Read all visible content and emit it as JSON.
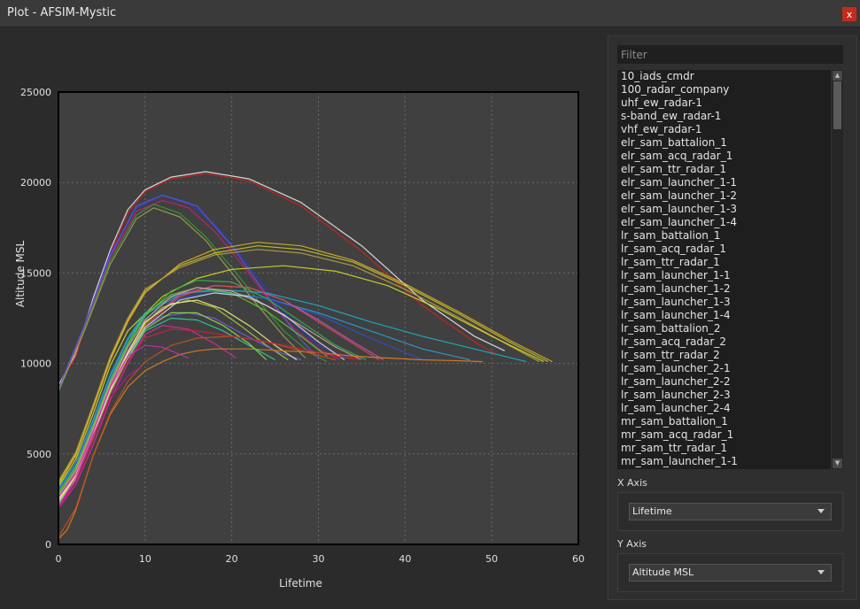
{
  "window": {
    "title": "Plot - AFSIM-Mystic",
    "close_label": "x"
  },
  "panel": {
    "filter_placeholder": "Filter",
    "platforms": [
      "10_iads_cmdr",
      "100_radar_company",
      "uhf_ew_radar-1",
      "s-band_ew_radar-1",
      "vhf_ew_radar-1",
      "elr_sam_battalion_1",
      "elr_sam_acq_radar_1",
      "elr_sam_ttr_radar_1",
      "elr_sam_launcher_1-1",
      "elr_sam_launcher_1-2",
      "elr_sam_launcher_1-3",
      "elr_sam_launcher_1-4",
      "lr_sam_battalion_1",
      "lr_sam_acq_radar_1",
      "lr_sam_ttr_radar_1",
      "lr_sam_launcher_1-1",
      "lr_sam_launcher_1-2",
      "lr_sam_launcher_1-3",
      "lr_sam_launcher_1-4",
      "lr_sam_battalion_2",
      "lr_sam_acq_radar_2",
      "lr_sam_ttr_radar_2",
      "lr_sam_launcher_2-1",
      "lr_sam_launcher_2-2",
      "lr_sam_launcher_2-3",
      "lr_sam_launcher_2-4",
      "mr_sam_battalion_1",
      "mr_sam_acq_radar_1",
      "mr_sam_ttr_radar_1",
      "mr_sam_launcher_1-1"
    ],
    "x_axis": {
      "label": "X Axis",
      "selected": "Lifetime"
    },
    "y_axis": {
      "label": "Y Axis",
      "selected": "Altitude MSL"
    }
  },
  "chart_data": {
    "type": "line",
    "xlabel": "Lifetime",
    "ylabel": "Altitude MSL",
    "xlim": [
      0,
      60
    ],
    "ylim": [
      0,
      25000
    ],
    "xticks": [
      0,
      10,
      20,
      30,
      40,
      50,
      60
    ],
    "yticks": [
      0,
      5000,
      10000,
      15000,
      20000,
      25000
    ],
    "grid": true,
    "series": [
      {
        "color": "#e8e8e8",
        "x": [
          0,
          2,
          4,
          6,
          8,
          10,
          13,
          17,
          22,
          28,
          35,
          42,
          48,
          51.5
        ],
        "y": [
          8800,
          10500,
          13600,
          16300,
          18500,
          19600,
          20300,
          20600,
          20200,
          18900,
          16500,
          13500,
          11500,
          10700
        ]
      },
      {
        "color": "#d02020",
        "x": [
          0,
          2,
          4,
          6,
          8,
          10,
          13,
          17,
          22,
          28,
          35,
          42,
          48,
          50.5
        ],
        "y": [
          8700,
          10400,
          13400,
          16100,
          18300,
          19500,
          20200,
          20500,
          20100,
          18700,
          16200,
          13200,
          11200,
          10500
        ]
      },
      {
        "color": "#2b3bd6",
        "x": [
          0,
          3,
          6,
          9,
          12,
          15,
          18,
          21,
          24,
          27,
          30,
          33.5
        ],
        "y": [
          8500,
          12100,
          16100,
          18600,
          19300,
          18900,
          17700,
          16000,
          14100,
          12300,
          11000,
          10300
        ]
      },
      {
        "color": "#c81d7a",
        "x": [
          0,
          3,
          6,
          9,
          12,
          15,
          18,
          21,
          24,
          27,
          30,
          32.5
        ],
        "y": [
          8600,
          12000,
          15900,
          18400,
          19000,
          18600,
          17300,
          15600,
          13700,
          12000,
          10800,
          10200
        ]
      },
      {
        "color": "#3a9a30",
        "x": [
          0,
          3,
          6,
          9,
          11,
          14,
          17,
          20,
          23,
          26,
          29,
          31
        ],
        "y": [
          8400,
          11900,
          15700,
          18200,
          18800,
          18300,
          17000,
          15300,
          13500,
          11800,
          10600,
          10100
        ]
      },
      {
        "color": "#a0a050",
        "x": [
          0,
          3,
          6,
          9,
          11,
          14,
          17,
          20,
          23,
          26,
          28.5
        ],
        "y": [
          8500,
          11800,
          15500,
          18000,
          18600,
          18100,
          16800,
          15000,
          13200,
          11500,
          10300
        ]
      },
      {
        "color": "#5858e8",
        "x": [
          0,
          3,
          6,
          9,
          12,
          16,
          20,
          24,
          28,
          30
        ],
        "y": [
          8600,
          12100,
          16000,
          18700,
          19300,
          18700,
          16500,
          13800,
          11300,
          10300
        ]
      },
      {
        "color": "#c8c828",
        "x": [
          0,
          2,
          4,
          6,
          8,
          10,
          14,
          18,
          23,
          28,
          34,
          40,
          46,
          52,
          56.5
        ],
        "y": [
          3400,
          5000,
          7600,
          10300,
          12400,
          14000,
          15400,
          16100,
          16500,
          16300,
          15600,
          14300,
          12800,
          11200,
          10100
        ]
      },
      {
        "color": "#e0b020",
        "x": [
          0,
          2,
          4,
          6,
          8,
          10,
          14,
          18,
          23,
          28,
          34,
          40,
          46,
          52,
          57
        ],
        "y": [
          3300,
          4900,
          7500,
          10200,
          12300,
          13900,
          15500,
          16300,
          16700,
          16500,
          15700,
          14400,
          12900,
          11300,
          10100
        ]
      },
      {
        "color": "#b8a040",
        "x": [
          0,
          2,
          4,
          6,
          8,
          10,
          14,
          18,
          23,
          28,
          34,
          40,
          46,
          52,
          55.5
        ],
        "y": [
          3500,
          5100,
          7700,
          10400,
          12500,
          14100,
          15300,
          16000,
          16300,
          16100,
          15400,
          14100,
          12600,
          11000,
          10100
        ]
      },
      {
        "color": "#d8d830",
        "x": [
          0,
          2,
          4,
          6,
          8,
          12,
          16,
          20,
          26,
          32,
          38,
          44,
          50,
          56
        ],
        "y": [
          3200,
          4700,
          7200,
          9900,
          11800,
          13700,
          14700,
          15200,
          15400,
          15100,
          14300,
          13000,
          11500,
          10100
        ]
      },
      {
        "color": "#1ab0c8",
        "x": [
          0,
          2,
          4,
          6,
          8,
          10,
          14,
          18,
          24,
          30,
          36,
          42,
          48,
          54
        ],
        "y": [
          3000,
          4400,
          6800,
          9300,
          11300,
          12700,
          13800,
          14100,
          13900,
          13200,
          12300,
          11500,
          10800,
          10100
        ]
      },
      {
        "color": "#28a0d8",
        "x": [
          0,
          2,
          4,
          6,
          8,
          10,
          14,
          18,
          24,
          30,
          36,
          42,
          47.5
        ],
        "y": [
          3100,
          4500,
          6900,
          9400,
          11400,
          12800,
          13900,
          14000,
          13600,
          12800,
          11800,
          10800,
          10200
        ]
      },
      {
        "color": "#2850e0",
        "x": [
          0,
          2,
          4,
          6,
          8,
          10,
          14,
          18,
          24,
          30,
          36,
          42
        ],
        "y": [
          3000,
          4400,
          6700,
          9200,
          11100,
          12500,
          13600,
          13900,
          13600,
          12700,
          11400,
          10200
        ]
      },
      {
        "color": "#30b840",
        "x": [
          0,
          2,
          4,
          6,
          8,
          10,
          13,
          16,
          20,
          24,
          28,
          32,
          35.5
        ],
        "y": [
          2800,
          4200,
          6500,
          9000,
          11000,
          12600,
          14000,
          14600,
          14500,
          13600,
          12300,
          11000,
          10200
        ]
      },
      {
        "color": "#58d028",
        "x": [
          0,
          2,
          4,
          6,
          8,
          10,
          13,
          16,
          20,
          24,
          28,
          31
        ],
        "y": [
          2900,
          4300,
          6600,
          9100,
          11100,
          12700,
          13800,
          14200,
          13900,
          12900,
          11500,
          10400
        ]
      },
      {
        "color": "#c850c8",
        "x": [
          0,
          2,
          4,
          6,
          8,
          10,
          14,
          18,
          22,
          26,
          30,
          34,
          37.5
        ],
        "y": [
          2600,
          4000,
          6300,
          8800,
          10700,
          12200,
          13800,
          14300,
          14200,
          13500,
          12400,
          11200,
          10200
        ]
      },
      {
        "color": "#e04848",
        "x": [
          0,
          2,
          4,
          6,
          8,
          10,
          14,
          18,
          22,
          26,
          30,
          34,
          37
        ],
        "y": [
          2500,
          3900,
          6200,
          8700,
          10600,
          12100,
          13700,
          14300,
          14200,
          13500,
          12300,
          11100,
          10200
        ]
      },
      {
        "color": "#a8d040",
        "x": [
          0,
          2,
          4,
          6,
          8,
          10,
          12,
          15,
          18,
          21,
          24,
          26.5
        ],
        "y": [
          2400,
          3800,
          6100,
          8600,
          10600,
          12200,
          13100,
          13500,
          13100,
          12100,
          11000,
          10200
        ]
      },
      {
        "color": "#d0a0a0",
        "x": [
          0,
          2,
          4,
          6,
          8,
          10,
          13,
          16,
          20,
          24,
          28,
          32,
          35
        ],
        "y": [
          2700,
          4100,
          6400,
          8900,
          10900,
          12400,
          13700,
          14200,
          14000,
          13200,
          12100,
          10900,
          10200
        ]
      },
      {
        "color": "#7060e8",
        "x": [
          0,
          2,
          4,
          6,
          8,
          10,
          12,
          15,
          18,
          21,
          25,
          28
        ],
        "y": [
          2300,
          3700,
          6000,
          8500,
          10400,
          12000,
          12600,
          12800,
          12500,
          11700,
          10700,
          10200
        ]
      },
      {
        "color": "#e028a0",
        "x": [
          0,
          2,
          4,
          6,
          8,
          10,
          12,
          15,
          18,
          20.5
        ],
        "y": [
          2000,
          3300,
          5500,
          8000,
          10000,
          11600,
          12100,
          11900,
          11100,
          10300
        ]
      },
      {
        "color": "#30d0a0",
        "x": [
          0,
          2,
          4,
          6,
          8,
          10,
          13,
          16,
          19,
          22,
          25
        ],
        "y": [
          2200,
          3600,
          5800,
          8300,
          10200,
          11800,
          12500,
          12400,
          11800,
          11000,
          10200
        ]
      },
      {
        "color": "#d8d8d8",
        "x": [
          0,
          2,
          4,
          6,
          8,
          10,
          14,
          18,
          22,
          26,
          30,
          33
        ],
        "y": [
          2400,
          3700,
          6000,
          8500,
          10500,
          12000,
          13500,
          13900,
          13700,
          12700,
          11200,
          10200
        ]
      },
      {
        "color": "#f0f080",
        "x": [
          0,
          2,
          4,
          6,
          8,
          10,
          13,
          16,
          19,
          22,
          25,
          27.5
        ],
        "y": [
          2500,
          3800,
          6100,
          8600,
          10600,
          12300,
          13300,
          13500,
          13000,
          12100,
          11000,
          10200
        ]
      },
      {
        "color": "#90e040",
        "x": [
          0,
          2,
          4,
          6,
          8,
          10,
          13,
          16,
          19,
          22,
          24
        ],
        "y": [
          2300,
          3600,
          5900,
          8400,
          10300,
          11900,
          12800,
          12800,
          12100,
          11100,
          10200
        ]
      },
      {
        "color": "#e08020",
        "x": [
          0,
          1,
          2,
          3,
          4,
          6,
          8,
          10,
          12,
          14,
          16,
          18,
          22,
          26,
          30,
          34,
          38,
          42,
          46,
          49
        ],
        "y": [
          300,
          800,
          1900,
          3400,
          4900,
          7200,
          8700,
          9600,
          10100,
          10500,
          10700,
          10800,
          10800,
          10700,
          10600,
          10400,
          10300,
          10200,
          10150,
          10100
        ]
      },
      {
        "color": "#c85020",
        "x": [
          0,
          2,
          4,
          6,
          8,
          10,
          13,
          16,
          20,
          24,
          28,
          32
        ],
        "y": [
          400,
          2000,
          4900,
          7300,
          9000,
          10100,
          11000,
          11400,
          11500,
          11200,
          10700,
          10200
        ]
      },
      {
        "color": "#d02040",
        "x": [
          0,
          2,
          4,
          6,
          8,
          10,
          13,
          16,
          20,
          24,
          28,
          32,
          35
        ],
        "y": [
          2100,
          3500,
          5800,
          8300,
          10200,
          11400,
          11900,
          11800,
          11500,
          11200,
          10800,
          10400,
          10200
        ]
      },
      {
        "color": "#b01898",
        "x": [
          0,
          2,
          4,
          6,
          8,
          9.5
        ],
        "y": [
          2000,
          3500,
          6000,
          8100,
          9300,
          9800
        ]
      },
      {
        "color": "#d828b8",
        "x": [
          0,
          2,
          4,
          6,
          8,
          10,
          12,
          15
        ],
        "y": [
          2100,
          3700,
          6200,
          8700,
          10400,
          11000,
          10900,
          10300
        ]
      }
    ]
  }
}
